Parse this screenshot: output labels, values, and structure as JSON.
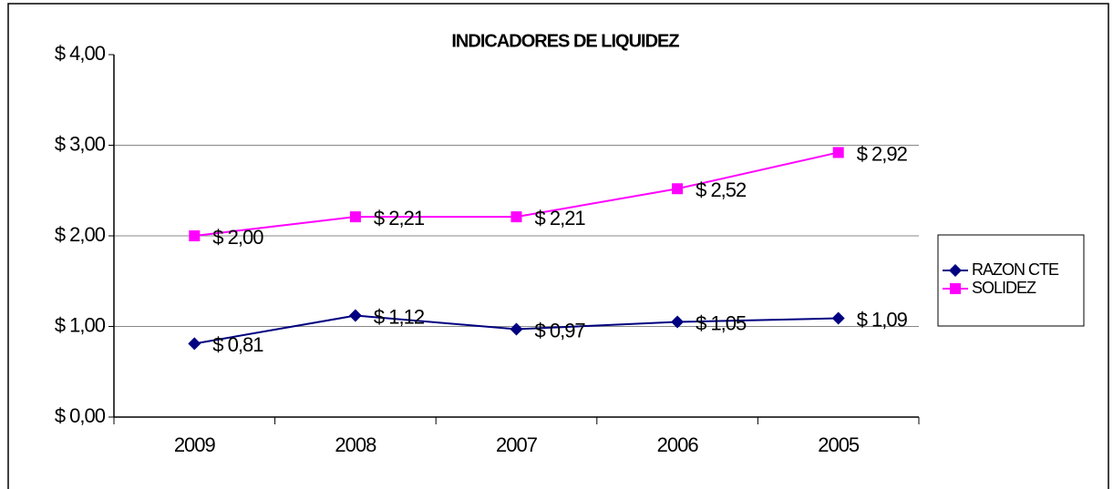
{
  "chart_data": {
    "type": "line",
    "title": "INDICADORES DE LIQUIDEZ",
    "categories": [
      "2009",
      "2008",
      "2007",
      "2006",
      "2005"
    ],
    "series": [
      {
        "name": "RAZON CTE",
        "color": "#000080",
        "marker": "diamond",
        "values": [
          0.81,
          1.12,
          0.97,
          1.05,
          1.09
        ],
        "value_labels": [
          "$ 0,81",
          "$ 1,12",
          "$ 0,97",
          "$ 1,05",
          "$ 1,09"
        ]
      },
      {
        "name": "SOLIDEZ",
        "color": "#ff00ff",
        "marker": "square",
        "values": [
          2.0,
          2.21,
          2.21,
          2.52,
          2.92
        ],
        "value_labels": [
          "$ 2,00",
          "$ 2,21",
          "$ 2,21",
          "$ 2,52",
          "$ 2,92"
        ]
      }
    ],
    "ylim": [
      0,
      4
    ],
    "yticks": [
      {
        "value": 0,
        "label": "$ 0,00"
      },
      {
        "value": 1,
        "label": "$ 1,00"
      },
      {
        "value": 2,
        "label": "$ 2,00"
      },
      {
        "value": 3,
        "label": "$ 3,00"
      },
      {
        "value": 4,
        "label": "$ 4,00"
      }
    ],
    "grid": true,
    "legend": "right"
  }
}
